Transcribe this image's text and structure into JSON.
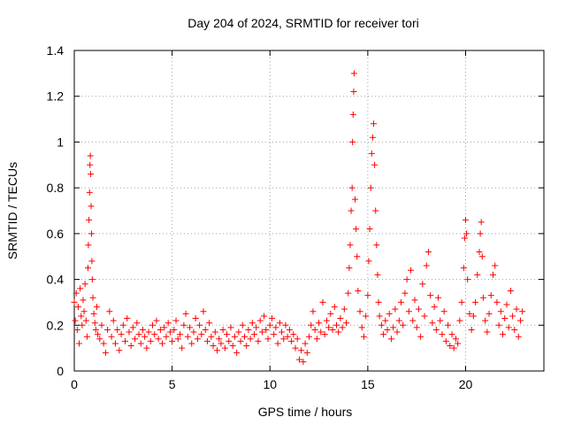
{
  "chart_data": {
    "type": "scatter",
    "title": "Day 204 of 2024, SRMTID for receiver tori",
    "xlabel": "GPS time / hours",
    "ylabel": "SRMTID / TECUs",
    "xlim": [
      0,
      24
    ],
    "ylim": [
      0,
      1.4
    ],
    "xticks": [
      0,
      5,
      10,
      15,
      20
    ],
    "yticks": [
      0,
      0.2,
      0.4,
      0.6,
      0.8,
      1,
      1.2,
      1.4
    ],
    "xtick_labels": [
      "0",
      "5",
      "10",
      "15",
      "20"
    ],
    "ytick_labels": [
      "0",
      "0.2",
      "0.4",
      "0.6",
      "0.8",
      "1",
      "1.2",
      "1.4"
    ],
    "grid": true,
    "marker": "+",
    "color": "#ff0000",
    "series": [
      {
        "name": "SRMTID",
        "points": [
          [
            0.0,
            0.3
          ],
          [
            0.05,
            0.22
          ],
          [
            0.1,
            0.34
          ],
          [
            0.15,
            0.18
          ],
          [
            0.2,
            0.28
          ],
          [
            0.25,
            0.12
          ],
          [
            0.3,
            0.36
          ],
          [
            0.35,
            0.24
          ],
          [
            0.4,
            0.2
          ],
          [
            0.45,
            0.31
          ],
          [
            0.5,
            0.26
          ],
          [
            0.55,
            0.38
          ],
          [
            0.6,
            0.22
          ],
          [
            0.65,
            0.15
          ],
          [
            0.7,
            0.45
          ],
          [
            0.72,
            0.55
          ],
          [
            0.75,
            0.66
          ],
          [
            0.78,
            0.78
          ],
          [
            0.8,
            0.9
          ],
          [
            0.82,
            0.94
          ],
          [
            0.84,
            0.86
          ],
          [
            0.86,
            0.72
          ],
          [
            0.88,
            0.6
          ],
          [
            0.9,
            0.48
          ],
          [
            0.92,
            0.4
          ],
          [
            0.95,
            0.32
          ],
          [
            1.0,
            0.25
          ],
          [
            1.05,
            0.21
          ],
          [
            1.1,
            0.18
          ],
          [
            1.15,
            0.28
          ],
          [
            1.2,
            0.16
          ],
          [
            1.3,
            0.14
          ],
          [
            1.4,
            0.2
          ],
          [
            1.5,
            0.12
          ],
          [
            1.6,
            0.08
          ],
          [
            1.7,
            0.18
          ],
          [
            1.8,
            0.26
          ],
          [
            1.9,
            0.15
          ],
          [
            2.0,
            0.22
          ],
          [
            2.1,
            0.12
          ],
          [
            2.2,
            0.18
          ],
          [
            2.3,
            0.09
          ],
          [
            2.4,
            0.16
          ],
          [
            2.5,
            0.2
          ],
          [
            2.6,
            0.13
          ],
          [
            2.7,
            0.23
          ],
          [
            2.8,
            0.17
          ],
          [
            2.9,
            0.11
          ],
          [
            3.0,
            0.19
          ],
          [
            3.1,
            0.14
          ],
          [
            3.2,
            0.21
          ],
          [
            3.3,
            0.16
          ],
          [
            3.4,
            0.12
          ],
          [
            3.5,
            0.18
          ],
          [
            3.6,
            0.15
          ],
          [
            3.7,
            0.1
          ],
          [
            3.8,
            0.17
          ],
          [
            3.9,
            0.13
          ],
          [
            4.0,
            0.2
          ],
          [
            4.1,
            0.16
          ],
          [
            4.2,
            0.22
          ],
          [
            4.3,
            0.14
          ],
          [
            4.4,
            0.18
          ],
          [
            4.5,
            0.12
          ],
          [
            4.6,
            0.19
          ],
          [
            4.7,
            0.15
          ],
          [
            4.8,
            0.21
          ],
          [
            4.9,
            0.17
          ],
          [
            5.0,
            0.13
          ],
          [
            5.1,
            0.18
          ],
          [
            5.2,
            0.22
          ],
          [
            5.3,
            0.14
          ],
          [
            5.4,
            0.16
          ],
          [
            5.5,
            0.1
          ],
          [
            5.6,
            0.2
          ],
          [
            5.7,
            0.25
          ],
          [
            5.8,
            0.15
          ],
          [
            5.9,
            0.19
          ],
          [
            6.0,
            0.12
          ],
          [
            6.1,
            0.17
          ],
          [
            6.2,
            0.23
          ],
          [
            6.3,
            0.14
          ],
          [
            6.4,
            0.2
          ],
          [
            6.5,
            0.16
          ],
          [
            6.6,
            0.26
          ],
          [
            6.7,
            0.18
          ],
          [
            6.8,
            0.13
          ],
          [
            6.9,
            0.21
          ],
          [
            7.0,
            0.15
          ],
          [
            7.1,
            0.11
          ],
          [
            7.2,
            0.17
          ],
          [
            7.3,
            0.09
          ],
          [
            7.4,
            0.14
          ],
          [
            7.5,
            0.12
          ],
          [
            7.6,
            0.18
          ],
          [
            7.7,
            0.1
          ],
          [
            7.8,
            0.16
          ],
          [
            7.9,
            0.13
          ],
          [
            8.0,
            0.19
          ],
          [
            8.1,
            0.11
          ],
          [
            8.2,
            0.15
          ],
          [
            8.3,
            0.08
          ],
          [
            8.4,
            0.17
          ],
          [
            8.5,
            0.13
          ],
          [
            8.6,
            0.2
          ],
          [
            8.7,
            0.15
          ],
          [
            8.8,
            0.11
          ],
          [
            8.9,
            0.18
          ],
          [
            9.0,
            0.14
          ],
          [
            9.1,
            0.21
          ],
          [
            9.2,
            0.16
          ],
          [
            9.3,
            0.19
          ],
          [
            9.4,
            0.13
          ],
          [
            9.5,
            0.22
          ],
          [
            9.6,
            0.17
          ],
          [
            9.7,
            0.24
          ],
          [
            9.8,
            0.18
          ],
          [
            9.9,
            0.14
          ],
          [
            10.0,
            0.2
          ],
          [
            10.1,
            0.23
          ],
          [
            10.2,
            0.16
          ],
          [
            10.3,
            0.19
          ],
          [
            10.4,
            0.12
          ],
          [
            10.5,
            0.21
          ],
          [
            10.6,
            0.17
          ],
          [
            10.7,
            0.14
          ],
          [
            10.8,
            0.2
          ],
          [
            10.9,
            0.15
          ],
          [
            11.0,
            0.18
          ],
          [
            11.1,
            0.13
          ],
          [
            11.2,
            0.16
          ],
          [
            11.3,
            0.1
          ],
          [
            11.4,
            0.14
          ],
          [
            11.5,
            0.05
          ],
          [
            11.6,
            0.09
          ],
          [
            11.7,
            0.04
          ],
          [
            11.8,
            0.12
          ],
          [
            11.9,
            0.08
          ],
          [
            12.0,
            0.15
          ],
          [
            12.1,
            0.2
          ],
          [
            12.2,
            0.26
          ],
          [
            12.3,
            0.18
          ],
          [
            12.4,
            0.14
          ],
          [
            12.5,
            0.21
          ],
          [
            12.6,
            0.17
          ],
          [
            12.7,
            0.3
          ],
          [
            12.8,
            0.16
          ],
          [
            12.9,
            0.22
          ],
          [
            13.0,
            0.19
          ],
          [
            13.1,
            0.25
          ],
          [
            13.2,
            0.18
          ],
          [
            13.3,
            0.28
          ],
          [
            13.4,
            0.2
          ],
          [
            13.5,
            0.17
          ],
          [
            13.6,
            0.23
          ],
          [
            13.7,
            0.19
          ],
          [
            13.8,
            0.27
          ],
          [
            13.9,
            0.21
          ],
          [
            14.0,
            0.34
          ],
          [
            14.05,
            0.45
          ],
          [
            14.1,
            0.55
          ],
          [
            14.15,
            0.7
          ],
          [
            14.2,
            0.8
          ],
          [
            14.22,
            1.0
          ],
          [
            14.25,
            1.12
          ],
          [
            14.28,
            1.22
          ],
          [
            14.3,
            1.3
          ],
          [
            14.35,
            0.75
          ],
          [
            14.4,
            0.62
          ],
          [
            14.45,
            0.5
          ],
          [
            14.5,
            0.35
          ],
          [
            14.6,
            0.26
          ],
          [
            14.7,
            0.19
          ],
          [
            14.8,
            0.15
          ],
          [
            14.9,
            0.24
          ],
          [
            15.0,
            0.33
          ],
          [
            15.05,
            0.48
          ],
          [
            15.1,
            0.62
          ],
          [
            15.15,
            0.8
          ],
          [
            15.2,
            0.95
          ],
          [
            15.25,
            1.02
          ],
          [
            15.3,
            1.08
          ],
          [
            15.35,
            0.9
          ],
          [
            15.4,
            0.7
          ],
          [
            15.45,
            0.55
          ],
          [
            15.5,
            0.42
          ],
          [
            15.55,
            0.3
          ],
          [
            15.6,
            0.24
          ],
          [
            15.7,
            0.2
          ],
          [
            15.8,
            0.16
          ],
          [
            15.9,
            0.22
          ],
          [
            16.0,
            0.18
          ],
          [
            16.1,
            0.25
          ],
          [
            16.2,
            0.14
          ],
          [
            16.3,
            0.19
          ],
          [
            16.4,
            0.27
          ],
          [
            16.5,
            0.17
          ],
          [
            16.6,
            0.22
          ],
          [
            16.7,
            0.3
          ],
          [
            16.8,
            0.2
          ],
          [
            16.9,
            0.34
          ],
          [
            17.0,
            0.4
          ],
          [
            17.1,
            0.26
          ],
          [
            17.2,
            0.44
          ],
          [
            17.3,
            0.22
          ],
          [
            17.4,
            0.31
          ],
          [
            17.5,
            0.19
          ],
          [
            17.6,
            0.27
          ],
          [
            17.7,
            0.15
          ],
          [
            17.8,
            0.38
          ],
          [
            17.9,
            0.24
          ],
          [
            18.0,
            0.46
          ],
          [
            18.1,
            0.52
          ],
          [
            18.2,
            0.33
          ],
          [
            18.3,
            0.21
          ],
          [
            18.4,
            0.28
          ],
          [
            18.5,
            0.18
          ],
          [
            18.6,
            0.32
          ],
          [
            18.7,
            0.22
          ],
          [
            18.8,
            0.16
          ],
          [
            18.9,
            0.26
          ],
          [
            19.0,
            0.13
          ],
          [
            19.1,
            0.2
          ],
          [
            19.2,
            0.11
          ],
          [
            19.3,
            0.16
          ],
          [
            19.4,
            0.1
          ],
          [
            19.5,
            0.14
          ],
          [
            19.6,
            0.12
          ],
          [
            19.7,
            0.22
          ],
          [
            19.8,
            0.3
          ],
          [
            19.9,
            0.45
          ],
          [
            19.95,
            0.58
          ],
          [
            20.0,
            0.66
          ],
          [
            20.05,
            0.6
          ],
          [
            20.1,
            0.4
          ],
          [
            20.2,
            0.25
          ],
          [
            20.3,
            0.18
          ],
          [
            20.4,
            0.24
          ],
          [
            20.5,
            0.3
          ],
          [
            20.6,
            0.42
          ],
          [
            20.7,
            0.52
          ],
          [
            20.75,
            0.6
          ],
          [
            20.8,
            0.65
          ],
          [
            20.85,
            0.5
          ],
          [
            20.9,
            0.32
          ],
          [
            21.0,
            0.22
          ],
          [
            21.1,
            0.17
          ],
          [
            21.2,
            0.25
          ],
          [
            21.3,
            0.33
          ],
          [
            21.4,
            0.42
          ],
          [
            21.5,
            0.46
          ],
          [
            21.6,
            0.3
          ],
          [
            21.7,
            0.2
          ],
          [
            21.8,
            0.26
          ],
          [
            21.9,
            0.16
          ],
          [
            22.0,
            0.23
          ],
          [
            22.1,
            0.29
          ],
          [
            22.2,
            0.19
          ],
          [
            22.3,
            0.35
          ],
          [
            22.4,
            0.24
          ],
          [
            22.5,
            0.18
          ],
          [
            22.6,
            0.27
          ],
          [
            22.7,
            0.15
          ],
          [
            22.8,
            0.22
          ],
          [
            22.9,
            0.26
          ]
        ]
      }
    ]
  }
}
